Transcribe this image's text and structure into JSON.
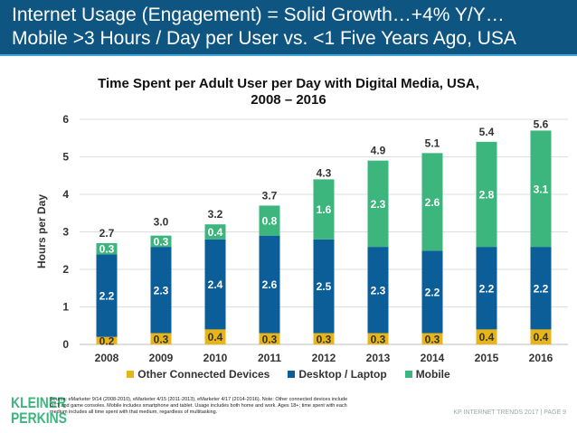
{
  "header": {
    "line1": "Internet Usage (Engagement) = Solid Growth…+4% Y/Y…",
    "line2": "Mobile >3 Hours / Day per User vs. <1 Five Years Ago, USA"
  },
  "chart_data": {
    "type": "bar",
    "stacked": true,
    "title": "Time Spent per Adult User per Day with Digital Media, USA, 2008 – 2016",
    "title_line1": "Time Spent per Adult User per Day with Digital Media, USA,",
    "title_line2": "2008 – 2016",
    "xlabel": "",
    "ylabel": "Hours per Day",
    "ylim": [
      0,
      6
    ],
    "yticks": [
      "0",
      "1",
      "2",
      "3",
      "4",
      "5",
      "6"
    ],
    "grid": true,
    "legend_position": "bottom",
    "categories": [
      "2008",
      "2009",
      "2010",
      "2011",
      "2012",
      "2013",
      "2014",
      "2015",
      "2016"
    ],
    "series": [
      {
        "name": "Other Connected Devices",
        "color": "#e9b516",
        "values": [
          0.2,
          0.3,
          0.4,
          0.3,
          0.3,
          0.3,
          0.3,
          0.4,
          0.4
        ]
      },
      {
        "name": "Desktop / Laptop",
        "color": "#0b5e98",
        "values": [
          2.2,
          2.3,
          2.4,
          2.6,
          2.5,
          2.3,
          2.2,
          2.2,
          2.2
        ]
      },
      {
        "name": "Mobile",
        "color": "#3db67e",
        "values": [
          0.3,
          0.3,
          0.4,
          0.8,
          1.6,
          2.3,
          2.6,
          2.8,
          3.1
        ]
      }
    ],
    "totals": [
      2.7,
      3.0,
      3.2,
      3.7,
      4.3,
      4.9,
      5.1,
      5.4,
      5.6
    ]
  },
  "logo": {
    "line1": "KLEINER",
    "line2": "PERKINS"
  },
  "source": "Source: eMarketer 9/14 (2008-2010), eMarketer 4/15 (2011-2013), eMarketer 4/17 (2014-2016). Note: Other connected devices include OTT and game consoles. Mobile includes smartphone and tablet. Usage includes both home and work. Ages 18+; time spent with each medium includes all time spent with that medium, regardless of multitasking.",
  "footer": "KP INTERNET TRENDS 2017  |  PAGE 9"
}
